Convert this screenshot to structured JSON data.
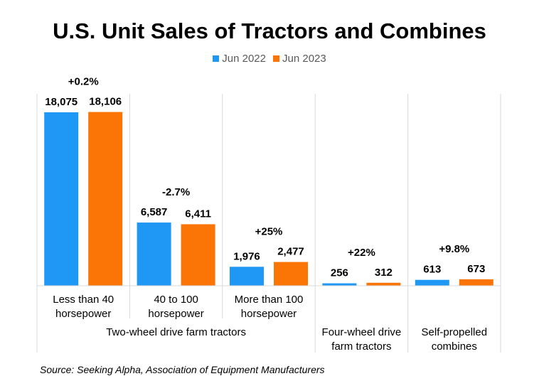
{
  "chart_data": {
    "type": "bar",
    "title": "U.S. Unit Sales of Tractors and Combines",
    "series": [
      {
        "name": "Jun 2022",
        "color": "#1f97f4",
        "values": [
          18075,
          6587,
          1976,
          256,
          613
        ]
      },
      {
        "name": "Jun 2023",
        "color": "#fb7406",
        "values": [
          18106,
          6411,
          2477,
          312,
          673
        ]
      }
    ],
    "value_labels": [
      [
        "18,075",
        "6,587",
        "1,976",
        "256",
        "613"
      ],
      [
        "18,106",
        "6,411",
        "2,477",
        "312",
        "673"
      ]
    ],
    "categories": [
      [
        "Less than 40",
        "horsepower"
      ],
      [
        "40 to 100",
        "horsepower"
      ],
      [
        "More than 100",
        "horsepower"
      ],
      [],
      []
    ],
    "change_labels": [
      "+0.2%",
      "-2.7%",
      "+25%",
      "+22%",
      "+9.8%"
    ],
    "groups": [
      {
        "lines": [
          "Two-wheel drive farm tractors"
        ],
        "span": [
          0,
          2
        ]
      },
      {
        "lines": [
          "Four-wheel drive",
          "farm tractors"
        ],
        "span": [
          3,
          3
        ]
      },
      {
        "lines": [
          "Self-propelled",
          "combines"
        ],
        "span": [
          4,
          4
        ]
      }
    ],
    "ylim": [
      0,
      20000
    ],
    "legend_position": "top-center",
    "grid": false
  },
  "source": "Source: Seeking Alpha, Association of Equipment Manufacturers"
}
